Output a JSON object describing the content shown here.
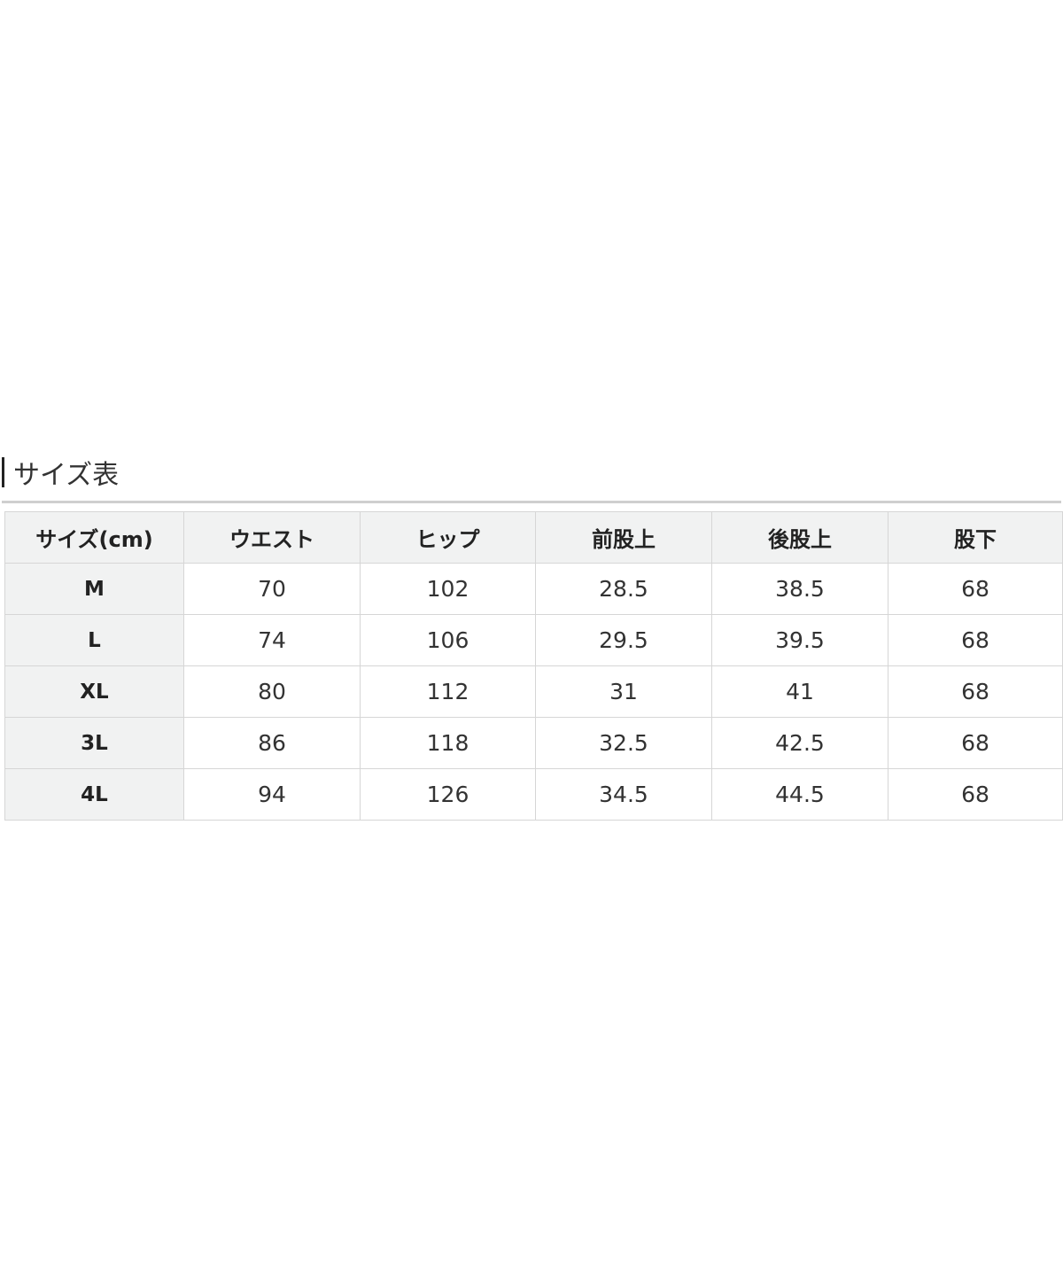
{
  "title": "サイズ表",
  "table": {
    "headers": [
      "サイズ(cm)",
      "ウエスト",
      "ヒップ",
      "前股上",
      "後股上",
      "股下"
    ],
    "rows": [
      [
        "M",
        "70",
        "102",
        "28.5",
        "38.5",
        "68"
      ],
      [
        "L",
        "74",
        "106",
        "29.5",
        "39.5",
        "68"
      ],
      [
        "XL",
        "80",
        "112",
        "31",
        "41",
        "68"
      ],
      [
        "3L",
        "86",
        "118",
        "32.5",
        "42.5",
        "68"
      ],
      [
        "4L",
        "94",
        "126",
        "34.5",
        "44.5",
        "68"
      ]
    ]
  }
}
